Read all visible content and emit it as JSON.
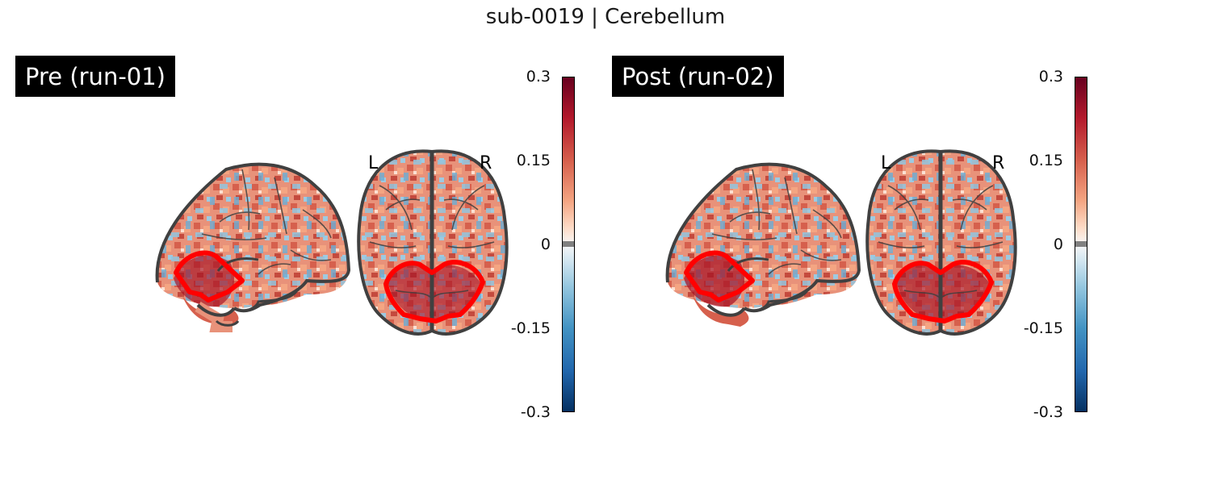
{
  "figure": {
    "title": "sub-0019 | Cerebellum"
  },
  "panels": [
    {
      "label": "Pre (run-01)",
      "orientation": {
        "left": "L",
        "right": "R"
      },
      "colorbar": {
        "ticks": [
          "0.3",
          "0.15",
          "0",
          "-0.15",
          "-0.3"
        ],
        "range": [
          -0.3,
          0.3
        ],
        "colormap": "RdBu_r"
      }
    },
    {
      "label": "Post (run-02)",
      "orientation": {
        "left": "L",
        "right": "R"
      },
      "colorbar": {
        "ticks": [
          "0.3",
          "0.15",
          "0",
          "-0.15",
          "-0.3"
        ],
        "range": [
          -0.3,
          0.3
        ],
        "colormap": "RdBu_r"
      }
    }
  ],
  "colors": {
    "roi_outline": "#ff0000",
    "brain_outline": "#404040",
    "positive": "#b2182b",
    "negative": "#2166ac"
  }
}
